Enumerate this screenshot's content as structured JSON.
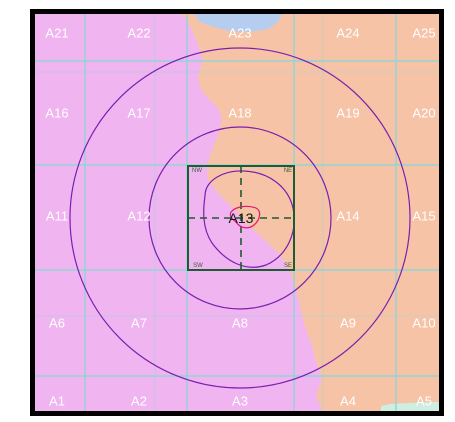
{
  "map": {
    "cell_labels": [
      "A1",
      "A2",
      "A3",
      "A4",
      "A5",
      "A6",
      "A7",
      "A8",
      "A9",
      "A10",
      "A11",
      "A12",
      "A13",
      "A14",
      "A15",
      "A16",
      "A17",
      "A18",
      "A19",
      "A20",
      "A21",
      "A22",
      "A23",
      "A24",
      "A25"
    ],
    "highlight_cell": "A13",
    "quadrant_labels": {
      "nw": "NW",
      "ne": "NE",
      "sw": "SW",
      "se": "SE"
    },
    "colors": {
      "region_pink": "#f0b4f0",
      "region_peach": "#f7c3a6",
      "region_blue": "#b5cdee",
      "region_mint": "#cdeee0",
      "grid": "#8fd6d6",
      "rings": "#7a1fb0",
      "box": "#1e5a32",
      "marker": "#e01a6c",
      "frame": "#000000"
    }
  }
}
